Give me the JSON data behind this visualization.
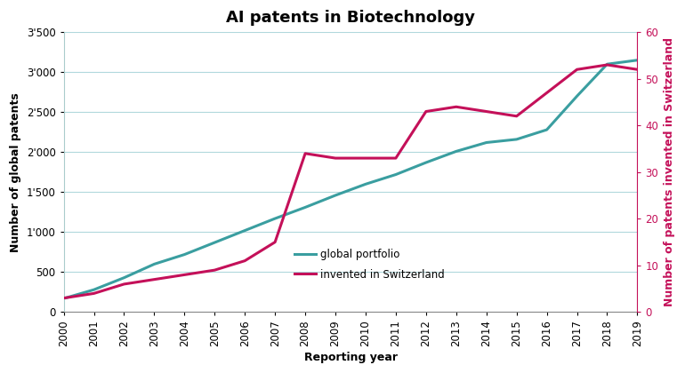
{
  "title": "AI patents in Biotechnology",
  "xlabel": "Reporting year",
  "ylabel_left": "Number of global patents",
  "ylabel_right": "Number of patents invented in Switzerland",
  "years": [
    2000,
    2001,
    2002,
    2003,
    2004,
    2005,
    2006,
    2007,
    2008,
    2009,
    2010,
    2011,
    2012,
    2013,
    2014,
    2015,
    2016,
    2017,
    2018,
    2019
  ],
  "global_portfolio": [
    170,
    280,
    430,
    600,
    720,
    870,
    1020,
    1170,
    1310,
    1460,
    1600,
    1720,
    1870,
    2010,
    2120,
    2160,
    2280,
    2700,
    3100,
    3150
  ],
  "swiss_patents": [
    3,
    4,
    6,
    7,
    8,
    9,
    11,
    15,
    34,
    33,
    33,
    33,
    43,
    44,
    43,
    42,
    47,
    52,
    53,
    52
  ],
  "color_global": "#3a9ea0",
  "color_swiss": "#c41059",
  "ylim_left": [
    0,
    3500
  ],
  "ylim_right": [
    0,
    60
  ],
  "yticks_left": [
    0,
    500,
    1000,
    1500,
    2000,
    2500,
    3000,
    3500
  ],
  "yticks_right": [
    0,
    10,
    20,
    30,
    40,
    50,
    60
  ],
  "background_color": "#ffffff",
  "legend_global": "global portfolio",
  "legend_swiss": "invented in Switzerland",
  "title_fontsize": 13,
  "label_fontsize": 9,
  "tick_fontsize": 8.5,
  "line_width": 2.2
}
